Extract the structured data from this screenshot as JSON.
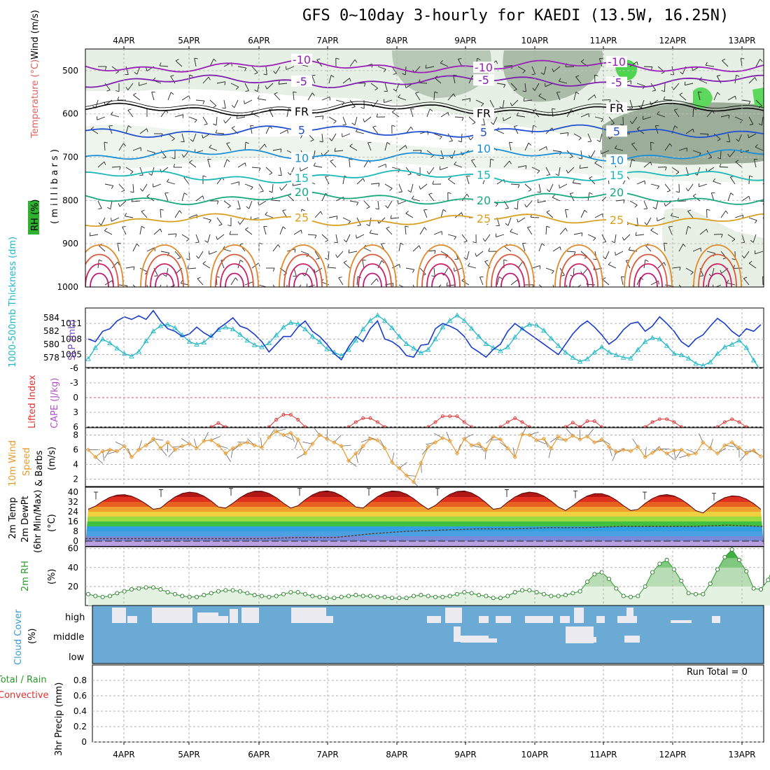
{
  "title": "GFS 0~10day 3-hourly for KAEDI (13.5W, 16.25N)",
  "dates": [
    "4APR",
    "5APR",
    "6APR",
    "7APR",
    "8APR",
    "9APR",
    "10APR",
    "11APR",
    "12APR",
    "13APR"
  ],
  "colors": {
    "frame": "#000000",
    "grid": "#b0b0b0",
    "cloud": "#6aaad4",
    "rh_fill": "#d8ecd5",
    "thickness": "#20b8c8",
    "slp": "#1a3ccc",
    "wind": "#e89a30",
    "lifted": "#e03030",
    "temp_warm": "#e07020",
    "rh2m": "#2a9a2a"
  },
  "chart_data": [
    {
      "id": "upper-air",
      "type": "contour",
      "title": "Wind (m/s), Temperature (°C), RH (%)",
      "ylabel": "millibars",
      "ylabel_parts": {
        "wind": "Wind (m/s)",
        "temp": "Temperature (°C)",
        "rh": "RH (%)",
        "units": "( m i l l i b a r s )"
      },
      "y_ticks": [
        "500",
        "600",
        "700",
        "800",
        "900",
        "1000"
      ],
      "ylim": [
        450,
        1000
      ],
      "isotherms": [
        {
          "label": "-10",
          "level": 490,
          "color": "#9a20b8"
        },
        {
          "label": "-5",
          "level": 525,
          "color": "#8020b0"
        },
        {
          "label": "FR",
          "level": 590,
          "color": "#000000"
        },
        {
          "label": "5",
          "level": 640,
          "color": "#2050d0"
        },
        {
          "label": "10",
          "level": 695,
          "color": "#1a90d8"
        },
        {
          "label": "15",
          "level": 745,
          "color": "#1ab8b8"
        },
        {
          "label": "20",
          "level": 795,
          "color": "#18a880"
        },
        {
          "label": "25",
          "level": 845,
          "color": "#d8a020"
        }
      ]
    },
    {
      "id": "thickness-slp",
      "type": "line",
      "ylabel_left": "1000-500mb Thickness (dm)",
      "ylabel_right": "SLP (mb)",
      "left_ticks": [
        "584",
        "582",
        "580",
        "578"
      ],
      "right_ticks": [
        "1011",
        "1008",
        "1005"
      ],
      "series": [
        {
          "name": "Thickness (dm)",
          "values": [
            577.8,
            579.5,
            580.8,
            580.2,
            579.4,
            578.6,
            578.2,
            578.9,
            580.5,
            582.0,
            582.8,
            583.0,
            582.5,
            581.4,
            580.4,
            580.0,
            580.3,
            581.3,
            582.2,
            582.6,
            582.3,
            581.5,
            580.6,
            579.9,
            579.6,
            580.2,
            581.4,
            582.6,
            583.3,
            583.1,
            582.3,
            581.2,
            580.4,
            579.3,
            578.8,
            578.3,
            579.2,
            580.6,
            582.3,
            583.6,
            584.4,
            583.6,
            582.5,
            581.2,
            580.1,
            579.4,
            578.7,
            579.2,
            580.8,
            582.6,
            583.6,
            584.4,
            583.6,
            582.4,
            581.2,
            580.1,
            579.5,
            579.0,
            579.6,
            581.1,
            582.4,
            583.0,
            582.9,
            582.1,
            580.9,
            579.8,
            578.8,
            578.0,
            577.4,
            577.8,
            578.8,
            579.6,
            578.8,
            578.4,
            578.0,
            577.9,
            579.2,
            580.4,
            581.0,
            580.8,
            579.8,
            578.6,
            578.4,
            577.9,
            577.1,
            576.8,
            577.3,
            578.6,
            579.6,
            580.0,
            580.6,
            579.5,
            577.6,
            576.0
          ]
        },
        {
          "name": "SLP (mb)",
          "values": [
            1008.0,
            1007.5,
            1009.5,
            1010.0,
            1011.5,
            1012.3,
            1011.8,
            1012.5,
            1011.8,
            1013.5,
            1011.5,
            1010.0,
            1009.5,
            1008.5,
            1009.0,
            1010.3,
            1009.2,
            1008.4,
            1010.0,
            1011.0,
            1012.1,
            1010.5,
            1010.0,
            1008.9,
            1007.5,
            1005.5,
            1007.0,
            1008.5,
            1008.5,
            1010.3,
            1011.5,
            1009.5,
            1008.5,
            1007.0,
            1005.2,
            1004.0,
            1006.5,
            1008.5,
            1007.5,
            1010.0,
            1011.5,
            1008.0,
            1007.5,
            1006.5,
            1004.8,
            1004.5,
            1006.8,
            1007.0,
            1010.0,
            1011.0,
            1010.5,
            1009.8,
            1008.5,
            1006.4,
            1005.5,
            1004.5,
            1006.0,
            1007.0,
            1009.5,
            1011.0,
            1010.0,
            1009.0,
            1008.0,
            1007.0,
            1006.0,
            1005.0,
            1007.0,
            1009.0,
            1010.5,
            1011.5,
            1010.3,
            1008.8,
            1007.0,
            1008.0,
            1009.8,
            1011.0,
            1011.3,
            1009.5,
            1010.5,
            1012.3,
            1011.0,
            1009.5,
            1007.5,
            1006.5,
            1008.0,
            1008.8,
            1010.5,
            1012.0,
            1011.0,
            1009.5,
            1008.5,
            1010.0,
            1009.5,
            1010.8
          ]
        }
      ]
    },
    {
      "id": "lifted-cape",
      "type": "line",
      "ylabel_left": "Lifted Index",
      "ylabel_right": "CAPE (J/kg)",
      "y_ticks": [
        "-6",
        "-3",
        "0",
        "3",
        "6"
      ],
      "ylim": [
        6,
        -6
      ],
      "series": [
        {
          "name": "Lifted Index",
          "segments": [
            {
              "start_index": 17,
              "values": [
                6.0,
                5.2,
                6.0
              ]
            },
            {
              "start_index": 25,
              "values": [
                6.0,
                4.5,
                3.5,
                3.5,
                4.5,
                6.0
              ]
            },
            {
              "start_index": 36,
              "values": [
                6.0,
                5.0,
                4.2,
                4.2,
                5.0,
                6.0
              ]
            },
            {
              "start_index": 47,
              "values": [
                6.0,
                5.0,
                3.8,
                3.8,
                3.8,
                5.0,
                6.0
              ]
            },
            {
              "start_index": 57,
              "values": [
                6.0,
                5.0,
                4.2,
                5.0,
                6.0
              ]
            },
            {
              "start_index": 66,
              "values": [
                6.0,
                5.1,
                6.0
              ]
            },
            {
              "start_index": 68,
              "values": [
                6.0,
                4.8,
                4.8,
                6.0
              ]
            },
            {
              "start_index": 77,
              "values": [
                6.0,
                5.0,
                4.4,
                4.4,
                5.0,
                6.0
              ]
            },
            {
              "start_index": 87,
              "values": [
                6.0,
                5.0,
                4.4,
                5.0,
                6.0
              ]
            }
          ]
        }
      ]
    },
    {
      "id": "wind10m",
      "type": "line",
      "ylabel": "10m Wind Speed & Barbs (m/s)",
      "ylabel_parts": {
        "wind": "10m Wind",
        "speed": "Speed",
        "barbs": "& Barbs",
        "units": "(m/s)"
      },
      "y_ticks": [
        "2",
        "4",
        "6",
        "8"
      ],
      "ylim": [
        1,
        9
      ],
      "series": [
        {
          "name": "Speed (m/s)",
          "values": [
            6.0,
            5.0,
            5.8,
            6.0,
            5.8,
            6.5,
            5.0,
            6.0,
            6.6,
            7.5,
            6.2,
            7.0,
            6.0,
            6.5,
            6.8,
            6.2,
            7.2,
            7.3,
            6.6,
            5.5,
            6.2,
            6.7,
            7.0,
            6.6,
            6.3,
            7.7,
            8.5,
            8.0,
            8.3,
            7.4,
            5.5,
            6.8,
            8.0,
            7.5,
            7.0,
            6.5,
            4.5,
            5.5,
            6.5,
            7.5,
            7.3,
            6.2,
            4.3,
            3.5,
            2.5,
            1.6,
            4.2,
            6.4,
            7.0,
            7.6,
            7.2,
            5.5,
            7.5,
            6.6,
            6.8,
            6.0,
            7.8,
            7.4,
            6.2,
            5.0,
            8.1,
            8.0,
            7.3,
            7.5,
            6.2,
            7.8,
            7.3,
            7.9,
            7.4,
            7.8,
            7.0,
            7.4,
            6.4,
            5.7,
            6.0,
            5.8,
            6.4,
            5.0,
            5.6,
            6.1,
            5.5,
            5.9,
            6.0,
            5.3,
            5.5,
            7.0,
            6.2,
            5.5,
            6.6,
            7.0,
            6.3,
            5.5,
            5.9,
            5.1
          ]
        }
      ]
    },
    {
      "id": "temp2m",
      "type": "area",
      "ylabel": "2m Temp 2m DewPt (6hr Min/Max) (°C)",
      "ylabel_parts": {
        "temp": "2m Temp",
        "dewpt": "2m DewPt",
        "minmax": "(6hr Min/Max)",
        "units": "(°C)"
      },
      "y_ticks": [
        "40",
        "32",
        "24",
        "16",
        "8",
        "0"
      ],
      "ylim": [
        -4,
        44
      ],
      "daily_max": [
        38,
        40,
        41,
        41,
        41,
        41,
        40,
        39,
        38,
        37
      ],
      "daily_min": [
        26,
        26,
        27,
        27,
        27,
        26,
        26,
        25,
        24,
        23
      ],
      "dewpoint": [
        2,
        2,
        2,
        2,
        2,
        2,
        3,
        3,
        6,
        8,
        9,
        10,
        10,
        11,
        11,
        12,
        12,
        12,
        13,
        12
      ]
    },
    {
      "id": "rh2m",
      "type": "area",
      "ylabel": "2m RH (%)",
      "ylabel_parts": {
        "name": "2m RH",
        "units": "(%)"
      },
      "y_ticks": [
        "20",
        "40",
        "60"
      ],
      "ylim": [
        0,
        62
      ],
      "series": [
        {
          "name": "2m RH (%)",
          "values": [
            12,
            10,
            9,
            10,
            13,
            15,
            17,
            18,
            19,
            19,
            17,
            14,
            12,
            10,
            9,
            9,
            11,
            13,
            15,
            16,
            16,
            15,
            13,
            11,
            10,
            9,
            10,
            12,
            14,
            14,
            12,
            10,
            9,
            8,
            8,
            9,
            10,
            11,
            10,
            10,
            9,
            9,
            8,
            8,
            8,
            10,
            11,
            10,
            9,
            9,
            10,
            12,
            14,
            13,
            11,
            10,
            8,
            8,
            10,
            14,
            16,
            16,
            14,
            12,
            10,
            10,
            11,
            13,
            15,
            25,
            33,
            35,
            28,
            18,
            10,
            9,
            10,
            20,
            35,
            44,
            48,
            38,
            26,
            13,
            12,
            12,
            23,
            38,
            51,
            59,
            48,
            36,
            18,
            17,
            27,
            46
          ]
        }
      ]
    },
    {
      "id": "cloud",
      "type": "bar",
      "ylabel": "Cloud Cover (%)",
      "ylabel_parts": {
        "name": "Cloud Cover",
        "units": "(%)"
      },
      "layers": [
        "high",
        "middle",
        "low"
      ],
      "series": [
        {
          "name": "high",
          "values": [
            0,
            0,
            0,
            0,
            0,
            0,
            0,
            0,
            0,
            0,
            0,
            0,
            0,
            0,
            0,
            0,
            0,
            0,
            0,
            0,
            0,
            0,
            0,
            0,
            0,
            0,
            0,
            0,
            0,
            0,
            0,
            0,
            0,
            0,
            0,
            0,
            0,
            0,
            0,
            0,
            0,
            0,
            0,
            0,
            0,
            0,
            0,
            0,
            0,
            0,
            0,
            0,
            0,
            0,
            0,
            0,
            0,
            0,
            0,
            0,
            0,
            0,
            0,
            0,
            0,
            0,
            0,
            0,
            0,
            0,
            0,
            0,
            0,
            0,
            0,
            0,
            0,
            0,
            0,
            0,
            0,
            0,
            0,
            0,
            0,
            0,
            0,
            0,
            0,
            0,
            0,
            0,
            0,
            0
          ]
        },
        {
          "name": "middle",
          "values": [
            0,
            0,
            0,
            0,
            0,
            0,
            0,
            0,
            0,
            0,
            0,
            0,
            0,
            0,
            0,
            0,
            0,
            0,
            0,
            0,
            0,
            0,
            0,
            0,
            0,
            0,
            0,
            0,
            0,
            0,
            0,
            0,
            0,
            0,
            0,
            0,
            0,
            0,
            0,
            0,
            0,
            0,
            0,
            0,
            0,
            0,
            0,
            0,
            0,
            0,
            0,
            0,
            0,
            0,
            0,
            0,
            0,
            0,
            0,
            0,
            0,
            0,
            0,
            0,
            0,
            0,
            0,
            0,
            0,
            0,
            0,
            0,
            0,
            0,
            0,
            0,
            0,
            0,
            0,
            0,
            0,
            0,
            0,
            0,
            0,
            0,
            0,
            0,
            0,
            0,
            0,
            0,
            0,
            0
          ]
        },
        {
          "name": "low",
          "values": [
            0,
            0,
            0,
            0,
            0,
            0,
            0,
            0,
            0,
            0,
            0,
            0,
            0,
            0,
            0,
            0,
            0,
            0,
            0,
            0,
            0,
            0,
            0,
            0,
            0,
            0,
            0,
            0,
            0,
            0,
            0,
            0,
            0,
            0,
            0,
            0,
            0,
            0,
            0,
            0,
            0,
            0,
            0,
            0,
            0,
            0,
            0,
            0,
            0,
            0,
            0,
            0,
            0,
            0,
            0,
            0,
            0,
            0,
            0,
            0,
            0,
            0,
            0,
            0,
            0,
            0,
            0,
            0,
            0,
            0,
            0,
            0,
            0,
            0,
            0,
            0,
            0,
            0,
            0,
            0,
            0,
            0,
            0,
            0,
            0,
            0,
            0,
            0,
            0,
            0,
            0,
            0,
            0,
            0
          ]
        }
      ]
    },
    {
      "id": "precip",
      "type": "bar",
      "ylabel": "3hr Precip (mm)",
      "ylabel_parts": {
        "name": "3hr Precip (mm)",
        "total_rain": "Total / Rain",
        "convective": "Convective"
      },
      "y_ticks": [
        "0",
        "0.2",
        "0.4",
        "0.6",
        "0.8"
      ],
      "ylim": [
        0,
        1
      ],
      "run_total": "Run Total = 0",
      "series": [
        {
          "name": "3hr Precip",
          "values": [
            0
          ]
        }
      ]
    }
  ]
}
